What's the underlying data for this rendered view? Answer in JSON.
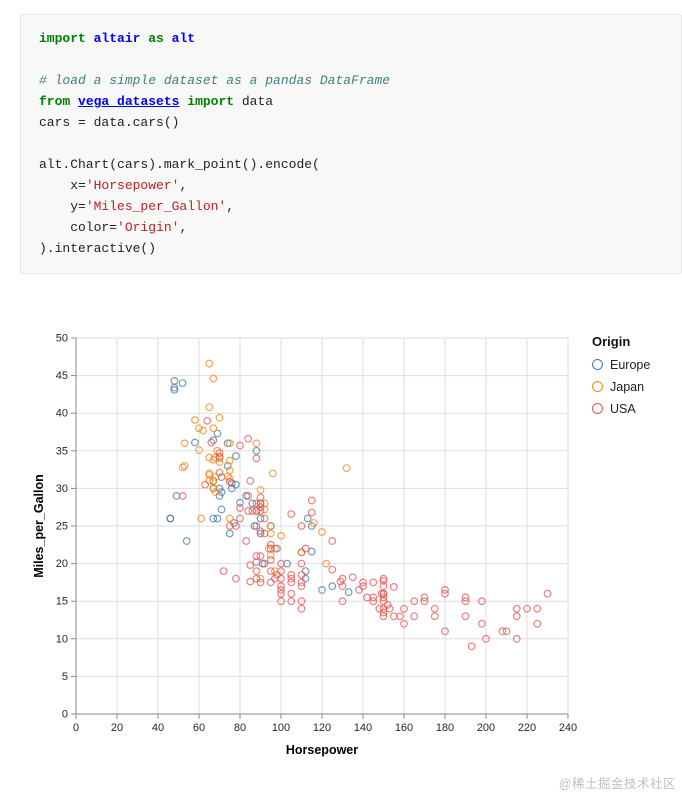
{
  "watermark": "@稀土掘金技术社区",
  "code": {
    "colors": {
      "kw": "#008000",
      "nn": "#0000ff",
      "ln": "#0000ff",
      "cm": "#408080",
      "st": "#ba2121",
      "pl": "#222222"
    },
    "lines": [
      [
        {
          "t": "kw",
          "v": "import"
        },
        {
          "t": "pl",
          "v": " "
        },
        {
          "t": "nn",
          "v": "altair"
        },
        {
          "t": "pl",
          "v": " "
        },
        {
          "t": "kw",
          "v": "as"
        },
        {
          "t": "pl",
          "v": " "
        },
        {
          "t": "nn",
          "v": "alt"
        }
      ],
      [],
      [
        {
          "t": "cm",
          "v": "# load a simple dataset as a pandas DataFrame"
        }
      ],
      [
        {
          "t": "kw",
          "v": "from"
        },
        {
          "t": "pl",
          "v": " "
        },
        {
          "t": "ln",
          "v": "vega_datasets"
        },
        {
          "t": "pl",
          "v": " "
        },
        {
          "t": "kw",
          "v": "import"
        },
        {
          "t": "pl",
          "v": " data"
        }
      ],
      [
        {
          "t": "pl",
          "v": "cars = data.cars()"
        }
      ],
      [],
      [
        {
          "t": "pl",
          "v": "alt.Chart(cars).mark_point().encode("
        }
      ],
      [
        {
          "t": "pl",
          "v": "    x="
        },
        {
          "t": "st",
          "v": "'Horsepower'"
        },
        {
          "t": "pl",
          "v": ","
        }
      ],
      [
        {
          "t": "pl",
          "v": "    y="
        },
        {
          "t": "st",
          "v": "'Miles_per_Gallon'"
        },
        {
          "t": "pl",
          "v": ","
        }
      ],
      [
        {
          "t": "pl",
          "v": "    color="
        },
        {
          "t": "st",
          "v": "'Origin'"
        },
        {
          "t": "pl",
          "v": ","
        }
      ],
      [
        {
          "t": "pl",
          "v": ").interactive()"
        }
      ]
    ]
  },
  "chart_data": {
    "type": "scatter",
    "title": "",
    "xlabel": "Horsepower",
    "ylabel": "Miles_per_Gallon",
    "xlim": [
      0,
      240
    ],
    "ylim": [
      0,
      50
    ],
    "xticks": [
      0,
      20,
      40,
      60,
      80,
      100,
      120,
      140,
      160,
      180,
      200,
      220,
      240
    ],
    "yticks": [
      0,
      5,
      10,
      15,
      20,
      25,
      30,
      35,
      40,
      45,
      50
    ],
    "grid": true,
    "legend_title": "Origin",
    "legend_position": "right",
    "mark": "open-circle",
    "series": [
      {
        "name": "Europe",
        "color": "#4c78a8",
        "points": [
          [
            46,
            26
          ],
          [
            46,
            26
          ],
          [
            87,
            25
          ],
          [
            90,
            24
          ],
          [
            95,
            25
          ],
          [
            113,
            26
          ],
          [
            90,
            28
          ],
          [
            70,
            30
          ],
          [
            76,
            30
          ],
          [
            54,
            23
          ],
          [
            90,
            26
          ],
          [
            112,
            18
          ],
          [
            112,
            19
          ],
          [
            91,
            20
          ],
          [
            115,
            25
          ],
          [
            49,
            29
          ],
          [
            75,
            24
          ],
          [
            69,
            26
          ],
          [
            67,
            26
          ],
          [
            78,
            30.5
          ],
          [
            70,
            29
          ],
          [
            71,
            29.5
          ],
          [
            83,
            29
          ],
          [
            98,
            22
          ],
          [
            115,
            21.6
          ],
          [
            67,
            30
          ],
          [
            110,
            21.5
          ],
          [
            48,
            43.1
          ],
          [
            48,
            43.4
          ],
          [
            48,
            44.3
          ],
          [
            67,
            36.4
          ],
          [
            77,
            25.4
          ],
          [
            133,
            16.2
          ],
          [
            125,
            17
          ],
          [
            120,
            16.5
          ],
          [
            71,
            27.2
          ],
          [
            69,
            37.3
          ],
          [
            67,
            31
          ],
          [
            58,
            36.1
          ],
          [
            71,
            31.5
          ],
          [
            78,
            34.3
          ],
          [
            80,
            28.1
          ],
          [
            76,
            30.7
          ],
          [
            74,
            33
          ],
          [
            74,
            36
          ],
          [
            52,
            44
          ],
          [
            88,
            35
          ],
          [
            86,
            28
          ],
          [
            103,
            20
          ]
        ]
      },
      {
        "name": "Japan",
        "color": "#f58518",
        "points": [
          [
            95,
            24
          ],
          [
            88,
            27
          ],
          [
            88,
            27
          ],
          [
            95,
            25
          ],
          [
            69,
            35
          ],
          [
            65,
            31
          ],
          [
            65,
            32
          ],
          [
            97,
            19
          ],
          [
            92,
            28
          ],
          [
            90,
            18
          ],
          [
            53,
            33
          ],
          [
            61,
            26
          ],
          [
            67,
            30
          ],
          [
            122,
            20
          ],
          [
            94,
            22
          ],
          [
            53,
            36
          ],
          [
            67,
            31
          ],
          [
            70,
            39.4
          ],
          [
            95,
            21.1
          ],
          [
            70,
            33.5
          ],
          [
            68,
            31.5
          ],
          [
            75,
            26
          ],
          [
            52,
            32.8
          ],
          [
            65,
            34.1
          ],
          [
            97,
            22
          ],
          [
            68,
            29.5
          ],
          [
            92,
            27.2
          ],
          [
            96,
            32
          ],
          [
            65,
            40.8
          ],
          [
            65,
            31.8
          ],
          [
            67,
            44.6
          ],
          [
            65,
            46.6
          ],
          [
            132,
            32.7
          ],
          [
            58,
            39.1
          ],
          [
            75,
            33.7
          ],
          [
            62,
            37.7
          ],
          [
            68,
            34.1
          ],
          [
            60,
            35.1
          ],
          [
            116,
            25.4
          ],
          [
            120,
            24.2
          ],
          [
            74,
            31.6
          ],
          [
            75,
            31.3
          ],
          [
            67,
            38
          ],
          [
            70,
            34
          ],
          [
            75,
            32.4
          ],
          [
            88,
            36
          ],
          [
            75,
            36
          ],
          [
            100,
            23.7
          ],
          [
            90,
            29.8
          ],
          [
            110,
            21.5
          ],
          [
            67,
            33.8
          ],
          [
            60,
            38
          ]
        ]
      },
      {
        "name": "USA",
        "color": "#e45756",
        "points": [
          [
            130,
            18
          ],
          [
            165,
            15
          ],
          [
            150,
            18
          ],
          [
            150,
            16
          ],
          [
            140,
            17
          ],
          [
            198,
            15
          ],
          [
            220,
            14
          ],
          [
            215,
            14
          ],
          [
            225,
            14
          ],
          [
            190,
            15
          ],
          [
            170,
            15
          ],
          [
            160,
            14
          ],
          [
            150,
            15
          ],
          [
            95,
            22
          ],
          [
            90,
            28
          ],
          [
            75,
            25
          ],
          [
            90,
            21
          ],
          [
            105,
            16
          ],
          [
            100,
            17
          ],
          [
            88,
            19
          ],
          [
            88,
            18
          ],
          [
            165,
            13
          ],
          [
            175,
            14
          ],
          [
            153,
            14
          ],
          [
            150,
            14
          ],
          [
            208,
            11
          ],
          [
            155,
            13
          ],
          [
            160,
            12
          ],
          [
            190,
            13
          ],
          [
            97,
            18
          ],
          [
            150,
            17
          ],
          [
            198,
            12
          ],
          [
            150,
            13
          ],
          [
            158,
            13
          ],
          [
            215,
            13
          ],
          [
            225,
            12
          ],
          [
            175,
            13
          ],
          [
            105,
            18
          ],
          [
            100,
            18
          ],
          [
            88,
            21
          ],
          [
            95,
            22.5
          ],
          [
            145,
            15
          ],
          [
            110,
            14
          ],
          [
            150,
            15.5
          ],
          [
            180,
            11
          ],
          [
            105,
            15
          ],
          [
            80,
            26
          ],
          [
            100,
            16
          ],
          [
            150,
            16
          ],
          [
            148,
            14
          ],
          [
            110,
            17
          ],
          [
            95,
            19
          ],
          [
            105,
            18.5
          ],
          [
            110,
            15
          ],
          [
            110,
            17.5
          ],
          [
            100,
            16.5
          ],
          [
            100,
            20
          ],
          [
            83,
            23
          ],
          [
            78,
            25
          ],
          [
            95,
            17.5
          ],
          [
            78,
            18
          ],
          [
            110,
            18.5
          ],
          [
            150,
            13.5
          ],
          [
            145,
            17.5
          ],
          [
            145,
            15.5
          ],
          [
            130,
            15
          ],
          [
            105,
            17.5
          ],
          [
            100,
            19
          ],
          [
            98,
            18.5
          ],
          [
            180,
            16
          ],
          [
            170,
            15.5
          ],
          [
            190,
            15.5
          ],
          [
            149,
            16
          ],
          [
            63,
            30.5
          ],
          [
            70,
            32.1
          ],
          [
            66,
            36.1
          ],
          [
            88,
            20.2
          ],
          [
            70,
            34.2
          ],
          [
            70,
            34.7
          ],
          [
            75,
            30.9
          ],
          [
            90,
            28.8
          ],
          [
            115,
            28.4
          ],
          [
            115,
            26.8
          ],
          [
            90,
            24.3
          ],
          [
            88,
            25
          ],
          [
            64,
            39
          ],
          [
            80,
            35.7
          ],
          [
            80,
            27.4
          ],
          [
            95,
            20.5
          ],
          [
            92,
            24
          ],
          [
            110,
            25
          ],
          [
            105,
            26.6
          ],
          [
            85,
            17.6
          ],
          [
            88,
            28
          ],
          [
            88,
            27
          ],
          [
            88,
            34
          ],
          [
            85,
            31
          ],
          [
            84,
            29
          ],
          [
            90,
            27
          ],
          [
            92,
            26
          ],
          [
            112,
            22
          ],
          [
            86,
            27
          ],
          [
            90,
            27.5
          ],
          [
            84,
            36.6
          ],
          [
            130,
            17
          ],
          [
            129,
            17.6
          ],
          [
            138,
            16.5
          ],
          [
            135,
            18.2
          ],
          [
            155,
            16.9
          ],
          [
            142,
            15.5
          ],
          [
            125,
            19.2
          ],
          [
            85,
            19.8
          ],
          [
            150,
            17.7
          ],
          [
            140,
            17.5
          ],
          [
            110,
            20
          ],
          [
            180,
            16.5
          ],
          [
            125,
            23
          ],
          [
            230,
            16
          ],
          [
            200,
            10
          ],
          [
            210,
            11
          ],
          [
            193,
            9
          ],
          [
            215,
            10
          ],
          [
            152,
            14.5
          ],
          [
            90,
            17.5
          ],
          [
            52,
            29
          ],
          [
            100,
            15
          ],
          [
            72,
            19
          ],
          [
            84,
            27
          ],
          [
            92,
            20
          ]
        ]
      }
    ]
  }
}
